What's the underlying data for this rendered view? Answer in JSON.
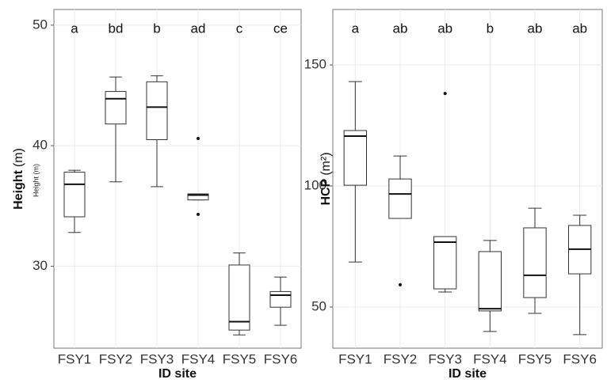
{
  "chart_data": [
    {
      "type": "box",
      "y_label_bold": "Height",
      "y_label_rest": "(m)",
      "y_label_small": "Height (m)",
      "x_label": "ID site",
      "categories": [
        "FSY1",
        "FSY2",
        "FSY3",
        "FSY4",
        "FSY5",
        "FSY6"
      ],
      "letters": [
        "a",
        "bd",
        "b",
        "ad",
        "c",
        "ce"
      ],
      "ylim": [
        23.2,
        51.3
      ],
      "yticks": [
        30,
        40,
        50
      ],
      "grid": true,
      "color": "#333333",
      "boxes": [
        {
          "whislo": 32.8,
          "q1": 34.1,
          "med": 36.8,
          "q3": 37.8,
          "whishi": 37.96,
          "outliers": []
        },
        {
          "whislo": 37.0,
          "q1": 41.8,
          "med": 43.9,
          "q3": 44.5,
          "whishi": 45.7,
          "outliers": []
        },
        {
          "whislo": 36.6,
          "q1": 40.5,
          "med": 43.2,
          "q3": 45.3,
          "whishi": 45.8,
          "outliers": []
        },
        {
          "whislo": 35.5,
          "q1": 35.5,
          "med": 35.9,
          "q3": 36.0,
          "whishi": 36.0,
          "outliers": [
            40.6,
            34.3
          ]
        },
        {
          "whislo": 24.3,
          "q1": 24.7,
          "med": 25.4,
          "q3": 30.1,
          "whishi": 31.1,
          "outliers": []
        },
        {
          "whislo": 25.1,
          "q1": 26.6,
          "med": 27.6,
          "q3": 27.9,
          "whishi": 29.1,
          "outliers": []
        }
      ]
    },
    {
      "type": "box",
      "y_label_bold": "HCP",
      "y_label_rest": "(m²)",
      "x_label": "ID site",
      "categories": [
        "FSY1",
        "FSY2",
        "FSY3",
        "FSY4",
        "FSY5",
        "FSY6"
      ],
      "letters": [
        "a",
        "ab",
        "ab",
        "b",
        "ab",
        "ab"
      ],
      "ylim": [
        33.0,
        172.9
      ],
      "yticks": [
        50,
        100,
        150
      ],
      "grid": true,
      "color": "#333333",
      "boxes": [
        {
          "whislo": 68.6,
          "q1": 100.3,
          "med": 120.6,
          "q3": 122.9,
          "whishi": 143.1,
          "outliers": []
        },
        {
          "whislo": 86.6,
          "q1": 86.6,
          "med": 96.7,
          "q3": 102.9,
          "whishi": 112.4,
          "outliers": [
            59.2
          ]
        },
        {
          "whislo": 56.2,
          "q1": 57.5,
          "med": 76.8,
          "q3": 79.1,
          "whishi": 79.1,
          "outliers": [
            138.2
          ]
        },
        {
          "whislo": 39.9,
          "q1": 48.4,
          "med": 49.3,
          "q3": 72.9,
          "whishi": 77.5,
          "outliers": []
        },
        {
          "whislo": 47.4,
          "q1": 53.9,
          "med": 63.1,
          "q3": 82.7,
          "whishi": 90.8,
          "outliers": []
        },
        {
          "whislo": 38.6,
          "q1": 63.7,
          "med": 73.9,
          "q3": 83.7,
          "whishi": 87.9,
          "outliers": []
        }
      ]
    }
  ]
}
